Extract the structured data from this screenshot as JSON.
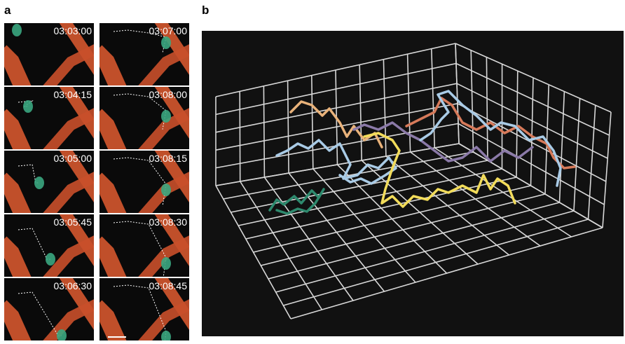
{
  "panels": {
    "a": {
      "label": "a",
      "frames": [
        "03:03:00",
        "03:04:15",
        "03:05:00",
        "03:05:45",
        "03:06:30",
        "03:07:00",
        "03:08:00",
        "03:08:15",
        "03:08:30",
        "03:08:45"
      ]
    },
    "b": {
      "label": "b"
    }
  }
}
